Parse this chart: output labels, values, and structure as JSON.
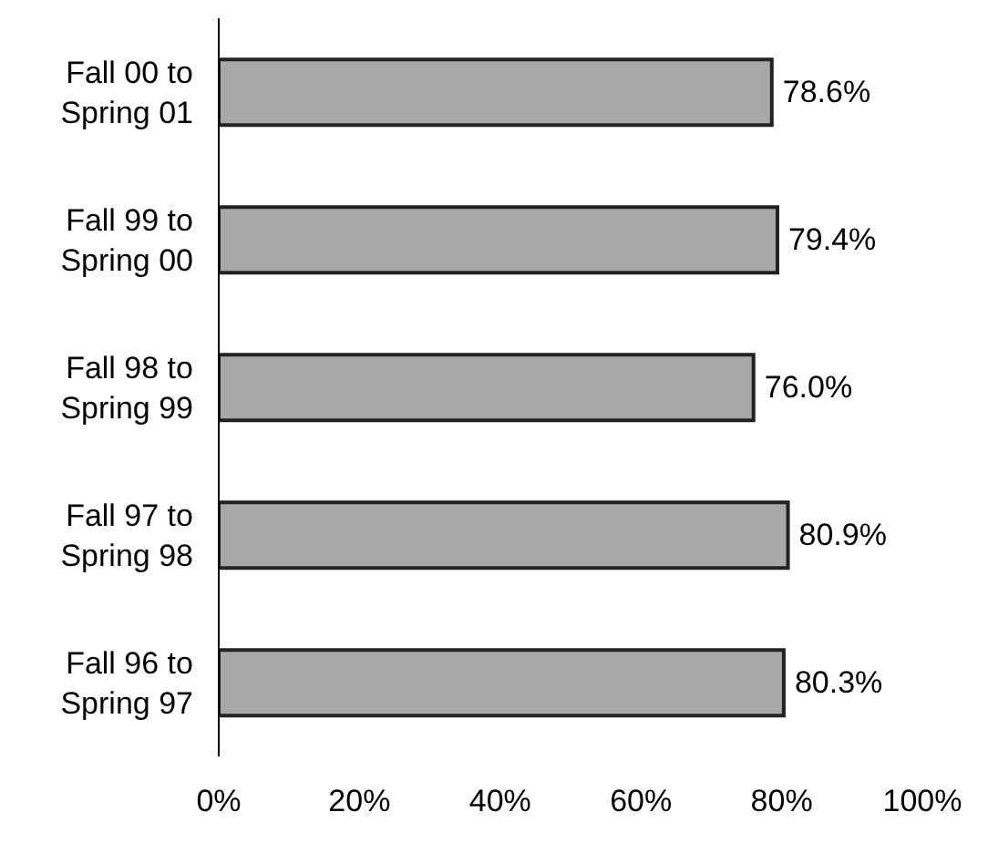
{
  "chart_data": {
    "type": "bar",
    "orientation": "horizontal",
    "categories": [
      "Fall 00 to Spring 01",
      "Fall 99 to Spring 00",
      "Fall 98 to Spring 99",
      "Fall 97 to Spring 98",
      "Fall 96 to Spring 97"
    ],
    "values": [
      78.6,
      79.4,
      76.0,
      80.9,
      80.3
    ],
    "value_labels": [
      "78.6%",
      "79.4%",
      "76.0%",
      "80.9%",
      "80.3%"
    ],
    "color": "#a8a8a8",
    "xlim": [
      0,
      100
    ],
    "xticks": [
      {
        "value": 0,
        "label": "0%"
      },
      {
        "value": 20,
        "label": "20%"
      },
      {
        "value": 40,
        "label": "40%"
      },
      {
        "value": 60,
        "label": "60%"
      },
      {
        "value": 80,
        "label": "80%"
      },
      {
        "value": 100,
        "label": "100%"
      }
    ],
    "grid": false
  }
}
